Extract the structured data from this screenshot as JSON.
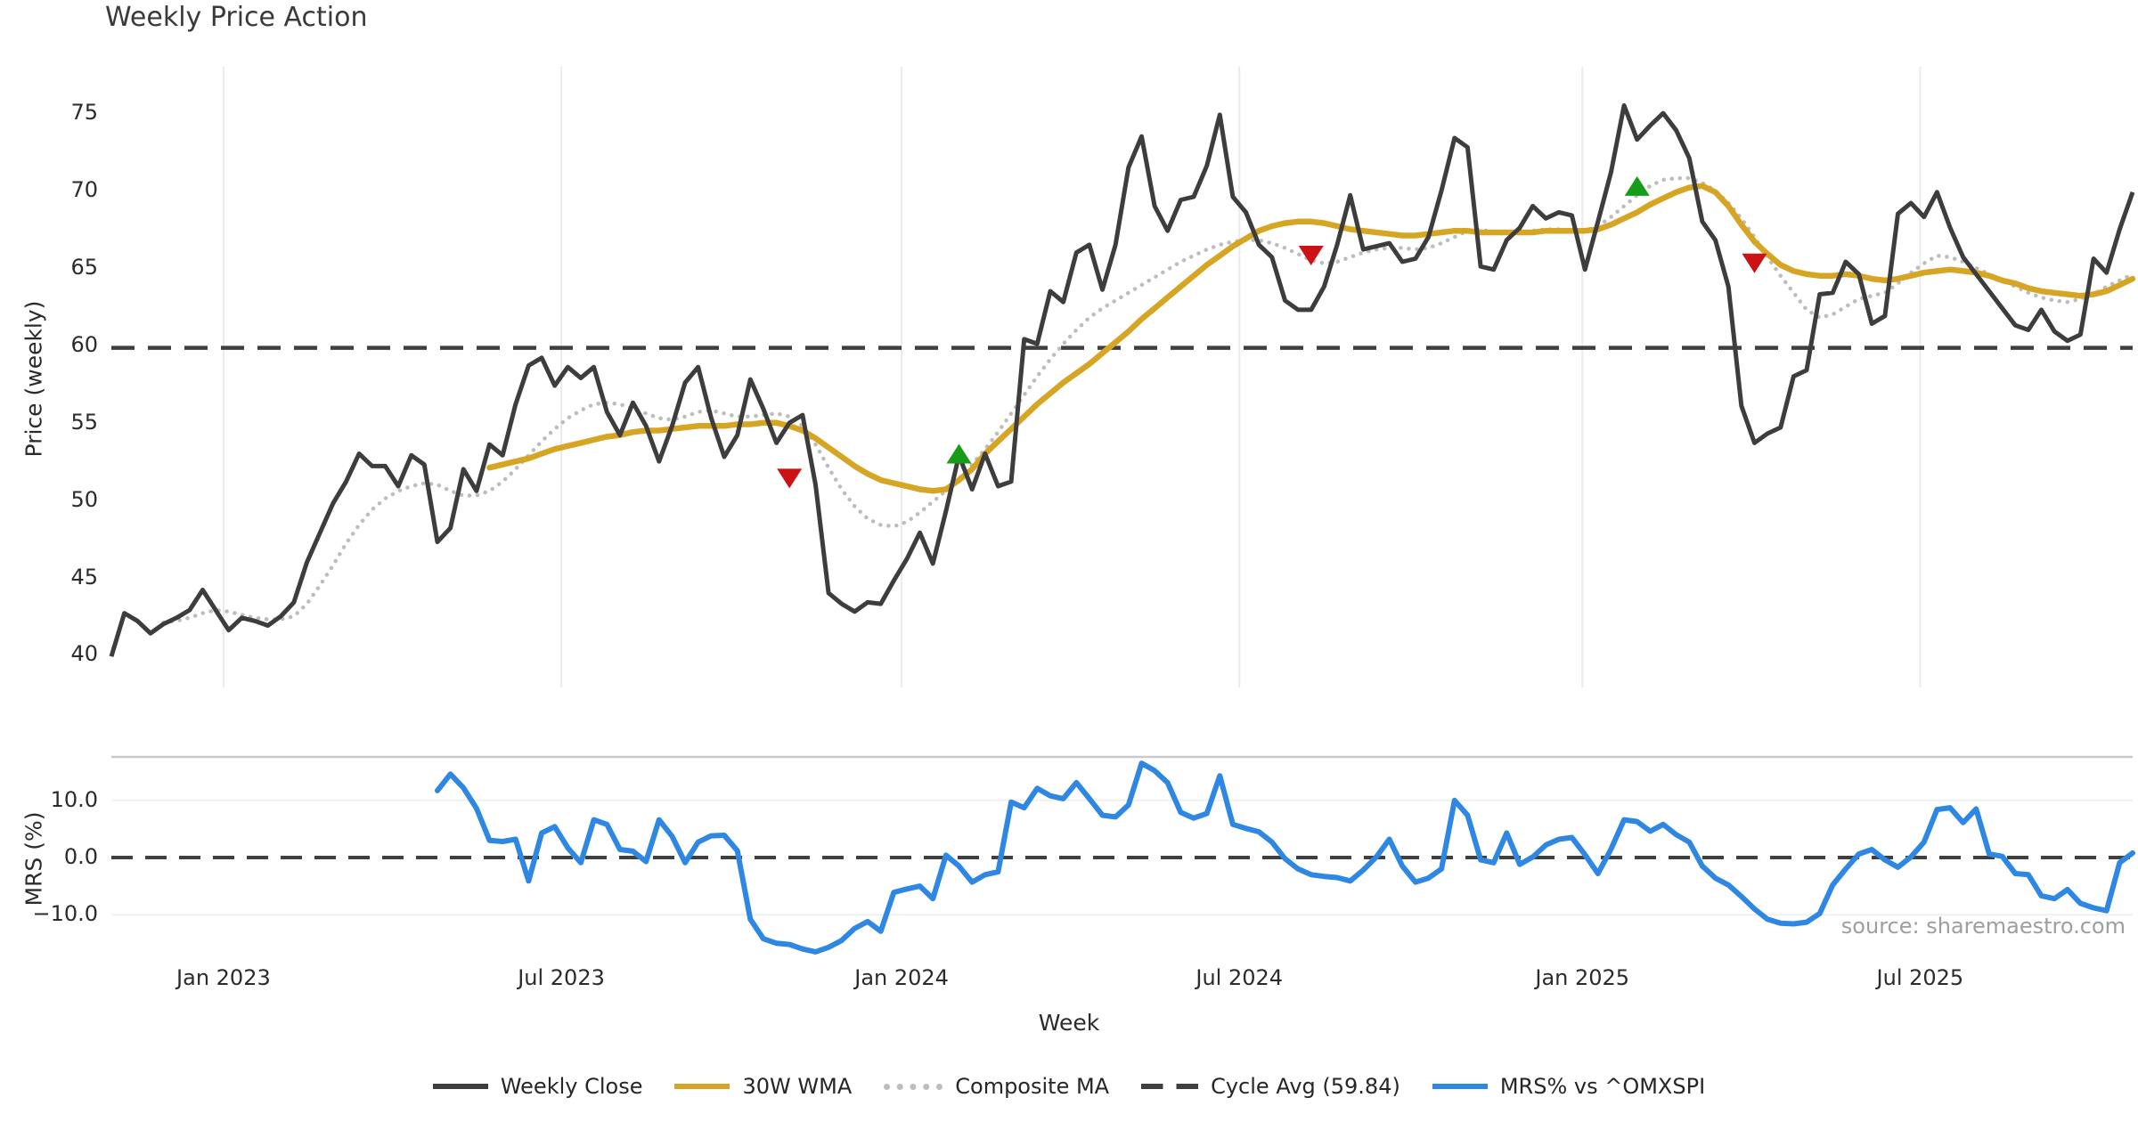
{
  "title": "Weekly Price Action",
  "source": "source: sharemaestro.com",
  "colors": {
    "close": "#3d3d3d",
    "wma": "#d7a524",
    "composite": "#bdbdbd",
    "cycle_avg": "#3f3f3f",
    "mrs": "#2e87e2",
    "buy_marker": "#169c19",
    "sell_marker": "#cb1316",
    "grid": "#ebebeb",
    "mrs_grid": "#f0f0f0",
    "mrs_border": "#c9c9c9"
  },
  "chart_data": {
    "type": "line",
    "title": "Weekly Price Action",
    "x_axis": {
      "label": "Week",
      "n_weeks": 156,
      "ticks": [
        {
          "label": "Jan 2023",
          "week": 8.6
        },
        {
          "label": "Jul 2023",
          "week": 34.5
        },
        {
          "label": "Jan 2024",
          "week": 60.6
        },
        {
          "label": "Jul 2024",
          "week": 86.5
        },
        {
          "label": "Jan 2025",
          "week": 112.8
        },
        {
          "label": "Jul 2025",
          "week": 138.7
        }
      ]
    },
    "price_panel": {
      "ylabel": "Price (weekly)",
      "ylim": [
        37.9,
        78.0
      ],
      "yticks": [
        75,
        70,
        65,
        60,
        55,
        50,
        45,
        40
      ],
      "cycle_avg": 59.84,
      "series": [
        {
          "name": "Weekly Close",
          "style": "solid",
          "color_key": "close",
          "start_week": 0,
          "values": [
            39.9,
            42.7,
            42.2,
            41.4,
            42.0,
            42.4,
            42.9,
            44.2,
            42.9,
            41.6,
            42.4,
            42.2,
            41.9,
            42.5,
            43.4,
            46.0,
            47.9,
            49.8,
            51.2,
            53.0,
            52.2,
            52.2,
            50.9,
            52.9,
            52.3,
            47.3,
            48.2,
            52.0,
            50.6,
            53.6,
            52.9,
            56.2,
            58.7,
            59.2,
            57.4,
            58.6,
            57.9,
            58.6,
            55.7,
            54.2,
            56.3,
            54.8,
            52.5,
            54.8,
            57.6,
            58.6,
            55.3,
            52.8,
            54.2,
            57.8,
            55.9,
            53.7,
            55.0,
            55.5,
            51.0,
            44.0,
            43.3,
            42.8,
            43.4,
            43.3,
            44.8,
            46.2,
            47.9,
            45.9,
            49.3,
            52.9,
            50.7,
            53.0,
            50.9,
            51.2,
            60.4,
            60.1,
            63.5,
            62.8,
            66.0,
            66.5,
            63.6,
            66.5,
            71.5,
            73.5,
            69.0,
            67.4,
            69.4,
            69.6,
            71.6,
            74.9,
            69.6,
            68.6,
            66.5,
            65.7,
            62.9,
            62.3,
            62.3,
            63.8,
            66.5,
            69.7,
            66.2,
            66.4,
            66.6,
            65.4,
            65.6,
            67.0,
            70.0,
            73.4,
            72.8,
            65.1,
            64.9,
            66.8,
            67.6,
            69.0,
            68.2,
            68.6,
            68.4,
            64.9,
            68.0,
            71.2,
            75.5,
            73.3,
            74.2,
            75.0,
            73.9,
            72.1,
            68.0,
            66.8,
            63.8,
            56.1,
            53.7,
            54.3,
            54.7,
            58.0,
            58.4,
            63.3,
            63.4,
            65.4,
            64.6,
            61.4,
            61.9,
            68.5,
            69.2,
            68.3,
            69.9,
            67.6,
            65.7,
            64.6,
            63.5,
            62.4,
            61.3,
            61.0,
            62.3,
            60.9,
            60.3,
            60.7,
            65.6,
            64.7,
            67.5,
            69.9
          ]
        },
        {
          "name": "30W WMA",
          "style": "solid",
          "color_key": "wma",
          "start_week": 29,
          "values": [
            52.1,
            52.3,
            52.5,
            52.7,
            53.0,
            53.3,
            53.5,
            53.7,
            53.9,
            54.1,
            54.2,
            54.4,
            54.5,
            54.5,
            54.6,
            54.7,
            54.8,
            54.8,
            54.8,
            54.9,
            54.9,
            55.0,
            55.0,
            54.8,
            54.5,
            54.0,
            53.4,
            52.8,
            52.2,
            51.7,
            51.3,
            51.1,
            50.9,
            50.7,
            50.6,
            50.7,
            51.3,
            52.0,
            53.0,
            53.8,
            54.6,
            55.4,
            56.2,
            56.9,
            57.6,
            58.2,
            58.8,
            59.5,
            60.2,
            60.9,
            61.7,
            62.4,
            63.1,
            63.8,
            64.5,
            65.2,
            65.8,
            66.4,
            66.9,
            67.4,
            67.7,
            67.9,
            68.0,
            68.0,
            67.9,
            67.7,
            67.5,
            67.4,
            67.3,
            67.2,
            67.1,
            67.1,
            67.2,
            67.3,
            67.4,
            67.4,
            67.3,
            67.3,
            67.3,
            67.3,
            67.3,
            67.4,
            67.4,
            67.4,
            67.4,
            67.5,
            67.8,
            68.2,
            68.6,
            69.1,
            69.5,
            69.9,
            70.2,
            70.3,
            69.9,
            69.0,
            67.8,
            66.7,
            65.9,
            65.2,
            64.8,
            64.6,
            64.5,
            64.5,
            64.6,
            64.5,
            64.3,
            64.2,
            64.3,
            64.5,
            64.7,
            64.8,
            64.9,
            64.8,
            64.7,
            64.5,
            64.2,
            64.0,
            63.7,
            63.5,
            63.4,
            63.3,
            63.2,
            63.3,
            63.5,
            63.9,
            64.3
          ]
        },
        {
          "name": "Composite MA",
          "style": "dotted",
          "color_key": "composite",
          "start_week": 4,
          "values": [
            42.1,
            42.2,
            42.4,
            42.7,
            42.9,
            42.8,
            42.6,
            42.4,
            42.3,
            42.3,
            42.5,
            43.3,
            44.5,
            45.8,
            47.2,
            48.4,
            49.4,
            50.1,
            50.6,
            50.9,
            51.1,
            51.0,
            50.6,
            50.3,
            50.3,
            50.6,
            51.2,
            52.0,
            52.9,
            53.8,
            54.6,
            55.3,
            55.8,
            56.2,
            56.3,
            56.2,
            55.9,
            55.6,
            55.3,
            55.2,
            55.4,
            55.7,
            55.8,
            55.6,
            55.4,
            55.4,
            55.5,
            55.6,
            55.4,
            54.8,
            53.6,
            52.1,
            50.7,
            49.6,
            48.8,
            48.4,
            48.3,
            48.6,
            49.2,
            49.9,
            50.6,
            51.4,
            52.3,
            53.3,
            54.4,
            55.6,
            56.8,
            58.0,
            59.1,
            60.1,
            61.0,
            61.8,
            62.4,
            62.9,
            63.4,
            63.9,
            64.4,
            64.9,
            65.4,
            65.8,
            66.2,
            66.5,
            66.7,
            66.8,
            66.8,
            66.6,
            66.3,
            65.9,
            65.5,
            65.3,
            65.4,
            65.7,
            66.0,
            66.2,
            66.3,
            66.3,
            66.2,
            66.3,
            66.6,
            67.0,
            67.4,
            67.5,
            67.3,
            67.2,
            67.3,
            67.4,
            67.5,
            67.5,
            67.4,
            67.4,
            67.7,
            68.3,
            69.0,
            69.7,
            70.3,
            70.7,
            70.8,
            70.8,
            70.5,
            70.0,
            69.2,
            68.2,
            67.0,
            65.7,
            64.5,
            63.4,
            62.3,
            61.8,
            62.0,
            62.5,
            63.0,
            63.2,
            63.4,
            64.0,
            64.7,
            65.3,
            65.8,
            65.7,
            65.4,
            65.0,
            64.6,
            64.2,
            63.8,
            63.4,
            63.1,
            62.9,
            62.8,
            63.0,
            63.3,
            63.8,
            64.2,
            64.6
          ]
        }
      ],
      "buy_markers": [
        {
          "week": 65,
          "value": 53.0
        },
        {
          "week": 117,
          "value": 70.3
        }
      ],
      "sell_markers": [
        {
          "week": 52,
          "value": 51.4
        },
        {
          "week": 92,
          "value": 65.8
        },
        {
          "week": 126,
          "value": 65.3
        }
      ]
    },
    "mrs_panel": {
      "ylabel": "MRS (%)",
      "ylim": [
        -17.6,
        17.6
      ],
      "yticks": [
        {
          "label": "10.0",
          "value": 10
        },
        {
          "label": "0.0",
          "value": 0
        },
        {
          "label": "−10.0",
          "value": -10
        }
      ],
      "zero_line": 0,
      "grid_values": [
        10,
        -10
      ],
      "series": [
        {
          "name": "MRS% vs ^OMXSPI",
          "style": "solid",
          "color_key": "mrs",
          "start_week": 25,
          "values": [
            11.7,
            14.6,
            12.2,
            8.6,
            3.0,
            2.8,
            3.2,
            -4.1,
            4.3,
            5.4,
            1.7,
            -0.9,
            6.6,
            5.8,
            1.4,
            1.1,
            -0.7,
            6.6,
            3.7,
            -0.9,
            2.7,
            3.8,
            3.9,
            1.2,
            -10.8,
            -14.2,
            -15.0,
            -15.2,
            -16.0,
            -16.5,
            -15.7,
            -14.5,
            -12.4,
            -11.2,
            -12.9,
            -6.1,
            -5.5,
            -5.0,
            -7.2,
            0.4,
            -1.5,
            -4.3,
            -3.0,
            -2.5,
            9.7,
            8.7,
            12.1,
            10.8,
            10.3,
            13.1,
            10.3,
            7.4,
            7.1,
            9.2,
            16.5,
            15.2,
            13.1,
            7.9,
            6.9,
            7.7,
            14.3,
            5.8,
            5.1,
            4.5,
            2.7,
            -0.2,
            -2.0,
            -3.0,
            -3.3,
            -3.5,
            -4.1,
            -2.2,
            0.1,
            3.2,
            -1.5,
            -4.3,
            -3.6,
            -2.0,
            10.0,
            7.4,
            -0.4,
            -0.9,
            4.3,
            -1.2,
            0.1,
            2.2,
            3.2,
            3.5,
            0.5,
            -2.8,
            1.5,
            6.6,
            6.3,
            4.6,
            5.8,
            4.0,
            2.7,
            -1.5,
            -3.6,
            -4.8,
            -6.8,
            -9.0,
            -10.8,
            -11.5,
            -11.6,
            -11.3,
            -9.8,
            -4.8,
            -2.0,
            0.6,
            1.4,
            -0.4,
            -1.7,
            0.1,
            2.7,
            8.4,
            8.7,
            6.1,
            8.5,
            0.6,
            0.2,
            -2.8,
            -3.0,
            -6.7,
            -7.2,
            -5.6,
            -8.0,
            -8.8,
            -9.3,
            -0.9,
            0.8
          ]
        }
      ]
    },
    "legend": [
      {
        "label": "Weekly Close",
        "swatch": "solid-dark"
      },
      {
        "label": "30W WMA",
        "swatch": "solid-gold"
      },
      {
        "label": "Composite MA",
        "swatch": "dotted-gray"
      },
      {
        "label": "Cycle Avg (59.84)",
        "swatch": "dashed-dark"
      },
      {
        "label": "MRS% vs ^OMXSPI",
        "swatch": "solid-blue"
      }
    ],
    "source": "source: sharemaestro.com"
  }
}
